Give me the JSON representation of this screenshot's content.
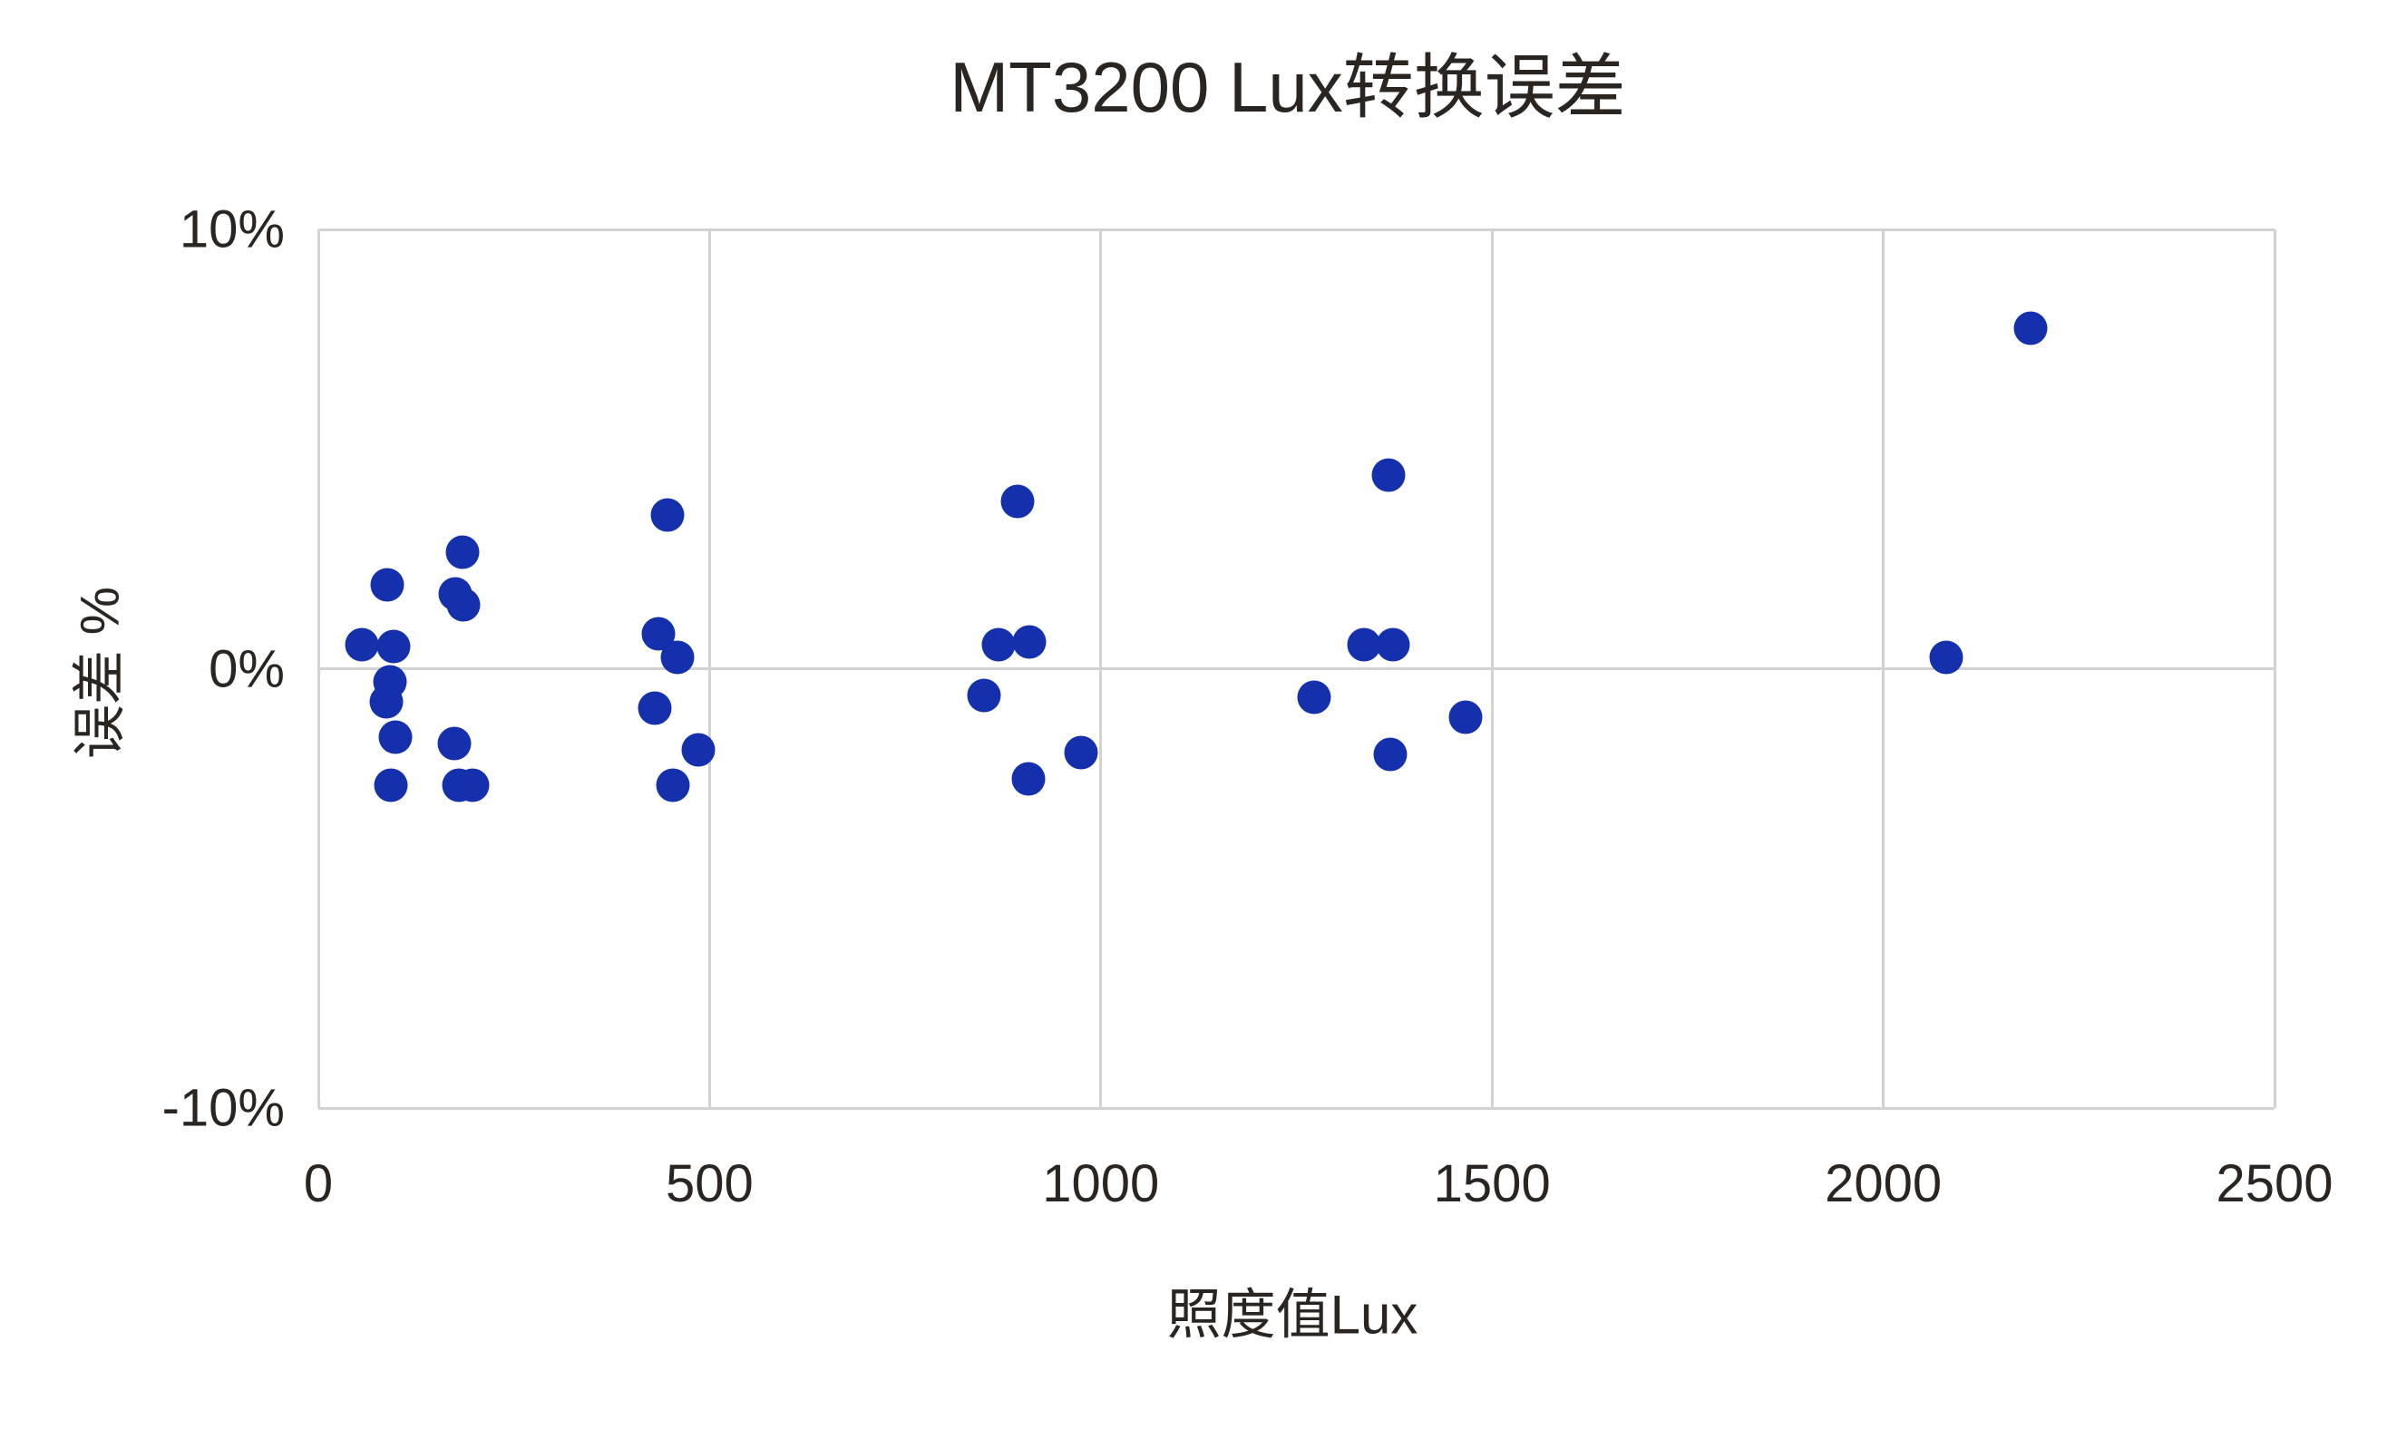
{
  "chart_data": {
    "type": "scatter",
    "title": "MT3200 Lux转换误差",
    "xlabel": "照度值Lux",
    "ylabel": "误差 %",
    "xlim": [
      0,
      2500
    ],
    "ylim": [
      -10,
      10
    ],
    "x_ticks": [
      0,
      500,
      1000,
      1500,
      2000,
      2500
    ],
    "x_tick_labels": [
      "0",
      "500",
      "1000",
      "1500",
      "2000",
      "2500"
    ],
    "y_ticks": [
      10,
      0,
      -10
    ],
    "y_tick_labels": [
      "10%",
      "0%",
      "-10%"
    ],
    "grid": "vertical gridlines at each x tick, horizontal line at 0%, full plot border",
    "legend": "none",
    "marker_color": "#1430ac",
    "grid_color": "#d2d2d2",
    "text_color": "#2b2521",
    "points": [
      [
        56,
        0.55
      ],
      [
        96,
        0.5
      ],
      [
        88,
        1.9
      ],
      [
        184,
        2.65
      ],
      [
        175,
        1.7
      ],
      [
        186,
        1.45
      ],
      [
        92,
        -0.3
      ],
      [
        87,
        -0.75
      ],
      [
        98,
        -1.55
      ],
      [
        174,
        -1.7
      ],
      [
        93,
        -2.65
      ],
      [
        180,
        -2.65
      ],
      [
        197,
        -2.65
      ],
      [
        446,
        3.5
      ],
      [
        435,
        0.8
      ],
      [
        459,
        0.25
      ],
      [
        430,
        -0.9
      ],
      [
        486,
        -1.85
      ],
      [
        453,
        -2.65
      ],
      [
        894,
        3.8
      ],
      [
        869,
        0.55
      ],
      [
        909,
        0.6
      ],
      [
        851,
        -0.6
      ],
      [
        975,
        -1.9
      ],
      [
        908,
        -2.5
      ],
      [
        1368,
        4.4
      ],
      [
        1336,
        0.55
      ],
      [
        1374,
        0.55
      ],
      [
        1273,
        -0.65
      ],
      [
        1466,
        -1.1
      ],
      [
        1370,
        -1.95
      ],
      [
        2188,
        7.75
      ],
      [
        2080,
        0.25
      ]
    ]
  }
}
